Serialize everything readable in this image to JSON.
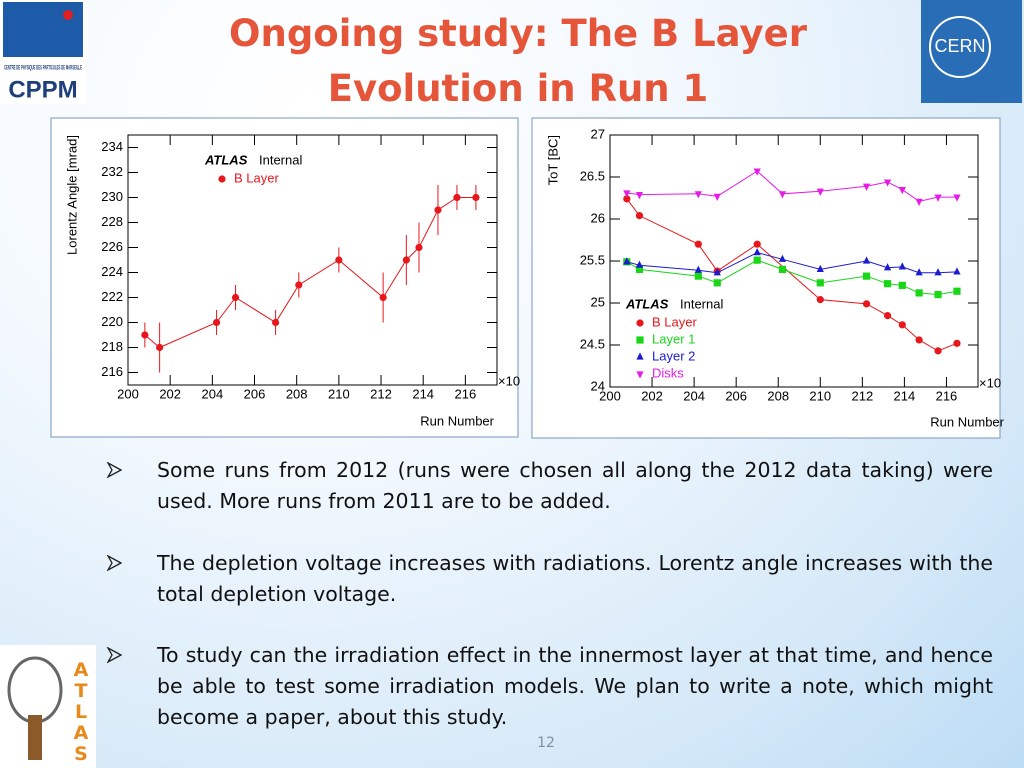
{
  "header": {
    "title_lines": [
      "Ongoing study: The B Layer",
      "Evolution in Run 1"
    ]
  },
  "logos": {
    "cppm_caption": "CENTRE DE PHYSIQUE DES PARTICULES DE MARSEILLE",
    "cppm": "CPPM",
    "cern": "CERN",
    "atlas": "ATLAS"
  },
  "chart_data": [
    {
      "type": "scatter",
      "connect": true,
      "annotation": "ATLAS",
      "annotation_suffix": "Internal",
      "x_label": "Run Number",
      "y_label": "Lorentz Angle [mrad]",
      "x_multiplier": "×10",
      "xlim": [
        200,
        217.5
      ],
      "xticks": [
        200,
        202,
        204,
        206,
        208,
        210,
        212,
        214,
        216
      ],
      "ylim": [
        215,
        235
      ],
      "yticks": [
        216,
        218,
        220,
        222,
        224,
        226,
        228,
        230,
        232,
        234
      ],
      "series": [
        {
          "name": "B Layer",
          "color": "#e8171c",
          "marker": "circle",
          "x": [
            200.8,
            201.5,
            204.2,
            205.1,
            207.0,
            208.1,
            210.0,
            212.1,
            213.2,
            213.8,
            214.7,
            215.6,
            216.5
          ],
          "values": [
            219,
            218,
            220,
            222,
            220,
            223,
            225,
            222,
            225,
            226,
            229,
            230,
            230
          ],
          "errors": [
            1,
            2,
            1,
            1,
            1,
            1,
            1,
            2,
            2,
            2,
            2,
            1,
            1
          ]
        }
      ]
    },
    {
      "type": "scatter",
      "connect": true,
      "annotation": "ATLAS",
      "annotation_suffix": "Internal",
      "x_label": "Run Number",
      "y_label": "ToT [BC]",
      "x_multiplier": "×10",
      "xlim": [
        200,
        217.5
      ],
      "xticks": [
        200,
        202,
        204,
        206,
        208,
        210,
        212,
        214,
        216
      ],
      "ylim": [
        24,
        27
      ],
      "yticks": [
        24,
        24.5,
        25,
        25.5,
        26,
        26.5,
        27
      ],
      "series": [
        {
          "name": "B Layer",
          "color": "#e8171c",
          "marker": "circle",
          "x": [
            200.8,
            201.4,
            204.2,
            205.1,
            207.0,
            210.0,
            212.2,
            213.2,
            213.9,
            214.7,
            215.6,
            216.5
          ],
          "values": [
            26.24,
            26.04,
            25.7,
            25.38,
            25.7,
            25.04,
            24.99,
            24.85,
            24.74,
            24.56,
            24.43,
            24.52
          ]
        },
        {
          "name": "Layer 1",
          "color": "#19d619",
          "marker": "square",
          "x": [
            200.8,
            201.4,
            204.2,
            205.1,
            207.0,
            208.2,
            210.0,
            212.2,
            213.2,
            213.9,
            214.7,
            215.6,
            216.5
          ],
          "values": [
            25.49,
            25.4,
            25.32,
            25.24,
            25.51,
            25.4,
            25.24,
            25.32,
            25.23,
            25.21,
            25.12,
            25.1,
            25.14
          ]
        },
        {
          "name": "Layer 2",
          "color": "#1c1ccf",
          "marker": "triangle-up",
          "x": [
            200.8,
            201.4,
            204.2,
            205.1,
            207.0,
            208.2,
            210.0,
            212.2,
            213.2,
            213.9,
            214.7,
            215.6,
            216.5
          ],
          "values": [
            25.49,
            25.45,
            25.39,
            25.36,
            25.6,
            25.52,
            25.4,
            25.5,
            25.42,
            25.43,
            25.36,
            25.36,
            25.37
          ]
        },
        {
          "name": "Disks",
          "color": "#e61ce6",
          "marker": "triangle-down",
          "x": [
            200.8,
            201.4,
            204.2,
            205.1,
            207.0,
            208.2,
            210.0,
            212.2,
            213.2,
            213.9,
            214.7,
            215.6,
            216.5
          ],
          "values": [
            26.31,
            26.29,
            26.3,
            26.27,
            26.57,
            26.3,
            26.33,
            26.39,
            26.44,
            26.35,
            26.21,
            26.26,
            26.26
          ]
        }
      ]
    }
  ],
  "bullets": [
    "Some runs from 2012 (runs were chosen all along the 2012 data taking) were used. More runs from 2011 are to be added.",
    "The depletion voltage increases with radiations. Lorentz angle increases with the total depletion voltage.",
    "To study can the irradiation effect in the innermost layer at that time, and hence be able to test some irradiation models. We plan to write a note, which might become a paper, about this study."
  ],
  "page_number": "12"
}
